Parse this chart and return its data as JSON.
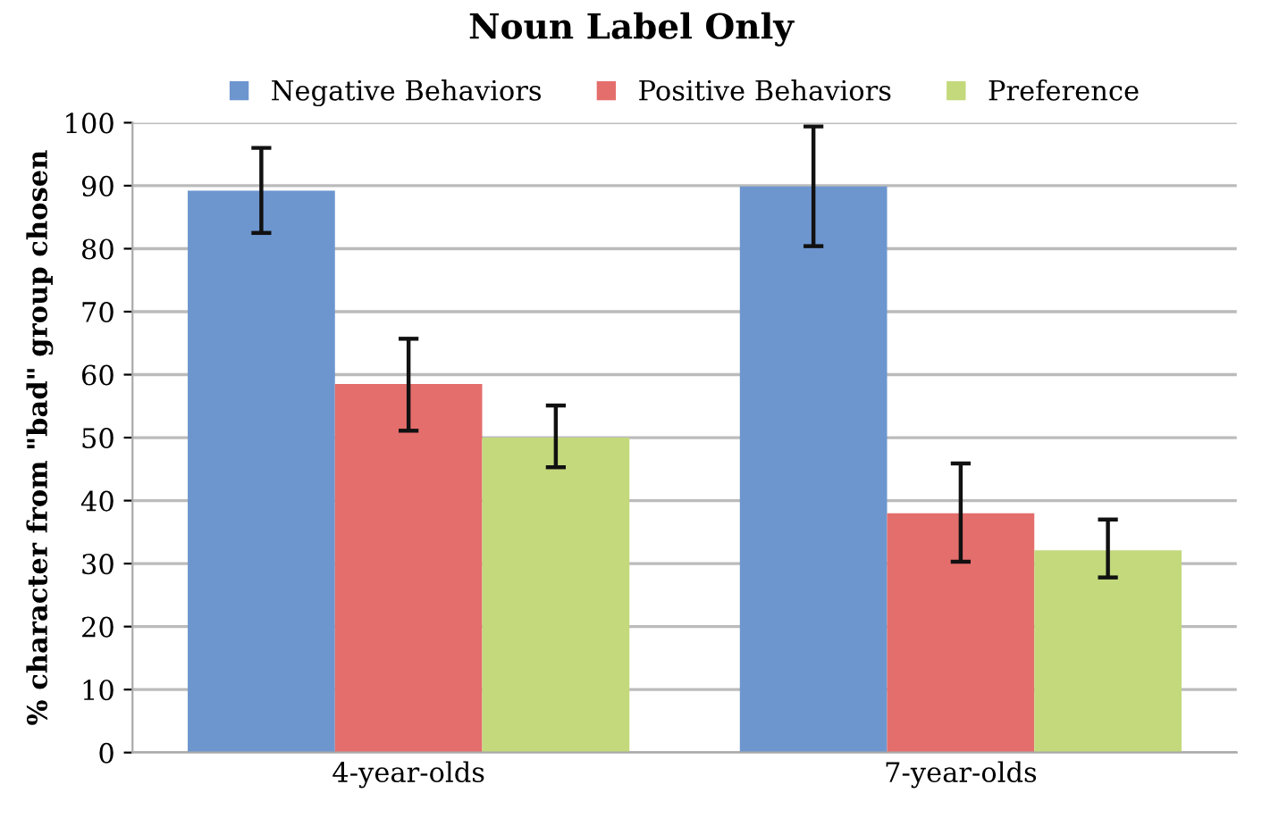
{
  "chart_data": {
    "type": "bar",
    "title": "Noun Label Only",
    "ylabel": "% character from \"bad\" group chosen",
    "categories": [
      "4-year-olds",
      "7-year-olds"
    ],
    "series": [
      {
        "name": "Negative Behaviors",
        "color": "#6d96cf",
        "values": [
          89.2,
          89.9
        ],
        "errors": [
          [
            82.5,
            96.0
          ],
          [
            80.4,
            99.4
          ]
        ]
      },
      {
        "name": "Positive Behaviors",
        "color": "#e46e6c",
        "values": [
          58.5,
          38.0
        ],
        "errors": [
          [
            51.1,
            65.7
          ],
          [
            30.3,
            45.9
          ]
        ]
      },
      {
        "name": "Preference",
        "color": "#c3d97c",
        "values": [
          50.0,
          32.1
        ],
        "errors": [
          [
            45.3,
            55.1
          ],
          [
            27.8,
            37.0
          ]
        ]
      }
    ],
    "ylim": [
      0,
      100
    ],
    "yticks": [
      0,
      10,
      20,
      30,
      40,
      50,
      60,
      70,
      80,
      90,
      100
    ],
    "grid": "y",
    "legend": "top"
  }
}
